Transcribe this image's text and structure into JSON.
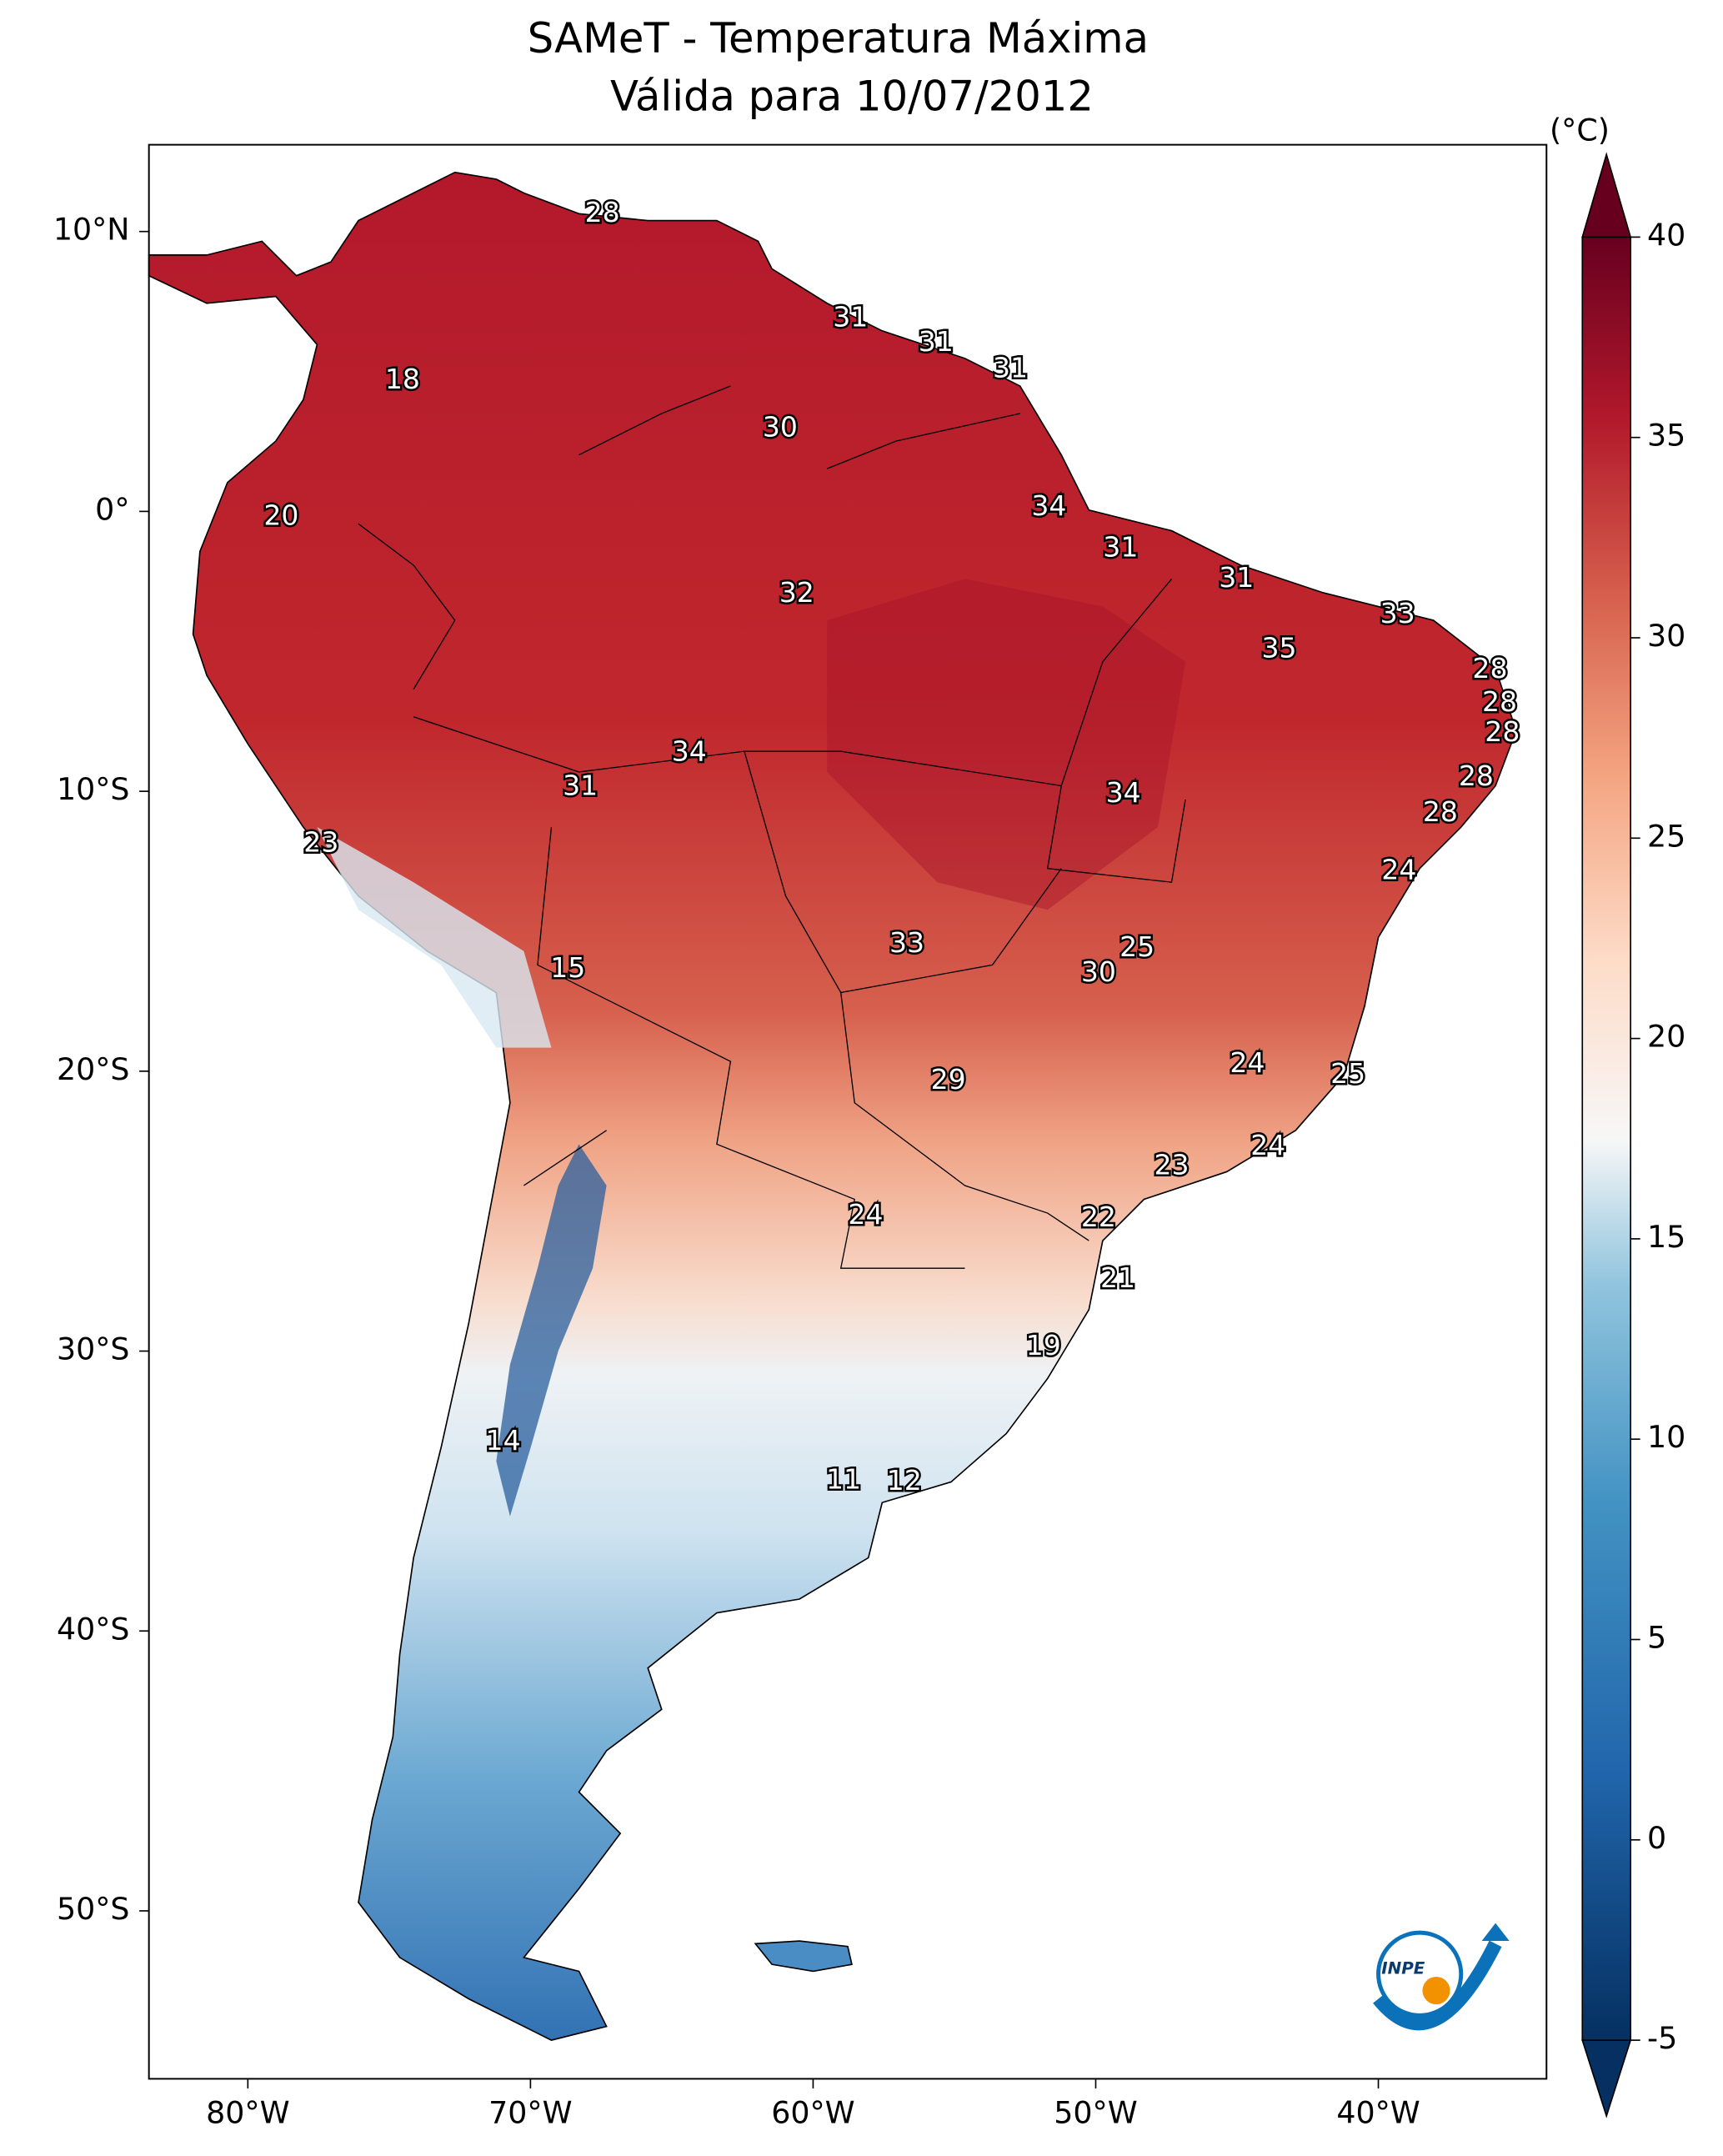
{
  "map": {
    "title": "SAMeT - Temperatura Máxima",
    "subtitle": "Válida para 10/07/2012",
    "xlim": [
      -83.5,
      -34.05
    ],
    "ylim": [
      -56.0,
      13.1
    ],
    "xticks": [
      {
        "value": -80,
        "label": "80°W"
      },
      {
        "value": -70,
        "label": "70°W"
      },
      {
        "value": -60,
        "label": "60°W"
      },
      {
        "value": -50,
        "label": "50°W"
      },
      {
        "value": -40,
        "label": "40°W"
      }
    ],
    "yticks": [
      {
        "value": 10,
        "label": "10°N"
      },
      {
        "value": 0,
        "label": "0°"
      },
      {
        "value": -10,
        "label": "10°S"
      },
      {
        "value": -20,
        "label": "20°S"
      },
      {
        "value": -30,
        "label": "30°S"
      },
      {
        "value": -40,
        "label": "40°S"
      },
      {
        "value": -50,
        "label": "50°S"
      }
    ],
    "colorbar": {
      "unit": "(°C)",
      "lim": [
        -5,
        40
      ],
      "ticks": [
        -5,
        0,
        5,
        10,
        15,
        20,
        25,
        30,
        35,
        40
      ]
    },
    "labels": [
      28,
      31,
      31,
      31,
      18,
      30,
      34,
      20,
      31,
      31,
      32,
      33,
      35,
      28,
      28,
      28,
      34,
      28,
      31,
      34,
      28,
      23,
      24,
      33,
      25,
      15,
      30,
      24,
      29,
      25,
      24,
      23,
      24,
      22,
      21,
      19,
      14,
      11,
      12
    ],
    "logo": "INPE"
  }
}
